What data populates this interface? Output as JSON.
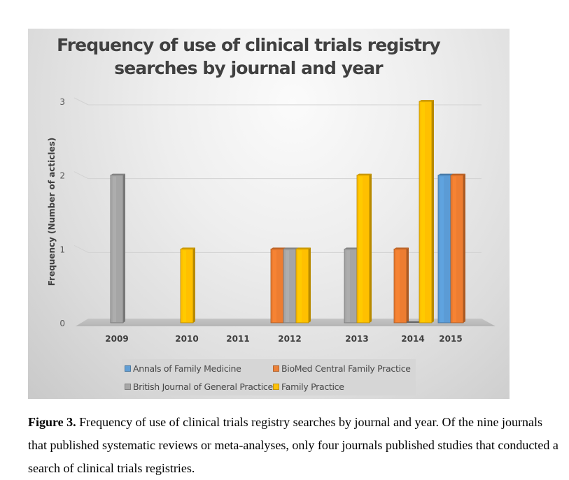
{
  "chart_data": {
    "type": "bar",
    "title": "Frequency of use of clinical trials registry searches by journal and year",
    "title_lines": [
      "Frequency of use of clinical trials registry",
      "searches by journal and year"
    ],
    "xlabel": "",
    "ylabel": "Frequency (Number of acticles)",
    "ylim": [
      0,
      3
    ],
    "yticks": [
      "0",
      "1",
      "2",
      "3"
    ],
    "grid": true,
    "legend_position": "bottom",
    "categories": [
      "2009",
      "2010",
      "2011",
      "2012",
      "2013",
      "2014",
      "2015"
    ],
    "series": [
      {
        "name": "Annals of Family Medicine",
        "color": "#5b9bd5",
        "values": [
          null,
          null,
          null,
          null,
          null,
          null,
          2
        ]
      },
      {
        "name": "BioMed Central Family Practice",
        "color": "#ed7d31",
        "values": [
          null,
          null,
          null,
          1,
          null,
          1,
          2
        ]
      },
      {
        "name": "British Journal of General Practice",
        "color": "#a5a5a5",
        "values": [
          2,
          null,
          null,
          1,
          1,
          0,
          null
        ]
      },
      {
        "name": "Family Practice",
        "color": "#ffc000",
        "values": [
          null,
          1,
          null,
          1,
          2,
          3,
          null
        ]
      }
    ]
  },
  "caption": {
    "label": "Figure 3.",
    "text": " Frequency of use of clinical trials registry searches by journal and year. Of the nine journals that published systematic reviews or meta-analyses, only four journals published studies that conducted a search of clinical trials registries."
  }
}
